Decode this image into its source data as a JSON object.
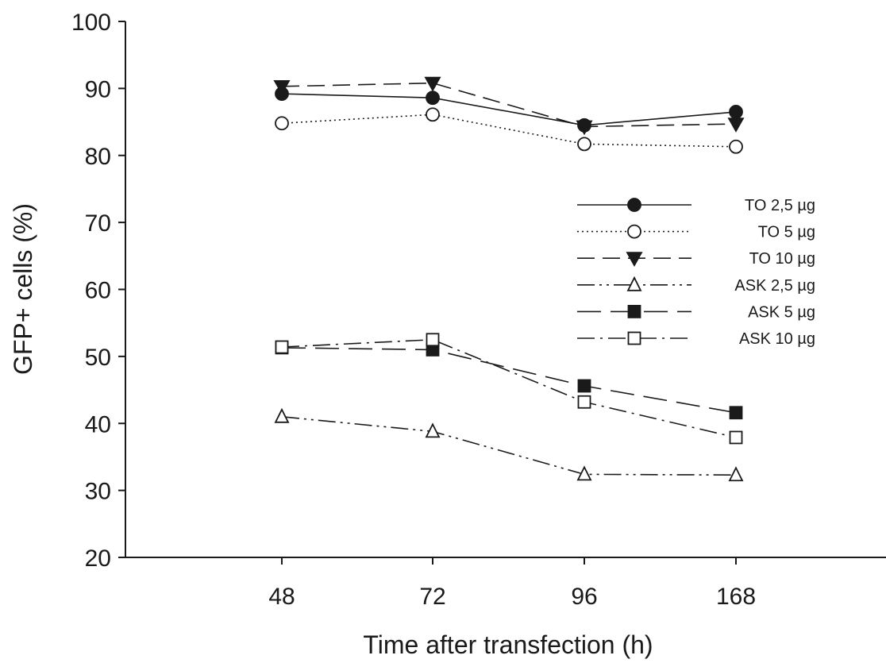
{
  "chart_data": {
    "type": "line",
    "title": "",
    "xlabel": "Time after transfection (h)",
    "ylabel": "GFP+ cells (%)",
    "categories": [
      "48",
      "72",
      "96",
      "168"
    ],
    "ylim": [
      20,
      100
    ],
    "yticks": [
      20,
      30,
      40,
      50,
      60,
      70,
      80,
      90,
      100
    ],
    "grid": false,
    "legend_position": "right",
    "series": [
      {
        "name": "TO 2,5 µg",
        "values": [
          89.2,
          88.6,
          84.5,
          86.5
        ],
        "marker": "filled-circle",
        "dash": "solid"
      },
      {
        "name": "TO 5 µg",
        "values": [
          84.8,
          86.1,
          81.7,
          81.3
        ],
        "marker": "open-circle",
        "dash": "dotted"
      },
      {
        "name": "TO 10 µg",
        "values": [
          90.3,
          90.8,
          84.3,
          84.7
        ],
        "marker": "filled-triangle-down",
        "dash": "dashed"
      },
      {
        "name": "ASK 2,5 µg",
        "values": [
          41.0,
          38.8,
          32.4,
          32.3
        ],
        "marker": "open-triangle-up",
        "dash": "dash-dot-dot"
      },
      {
        "name": "ASK 5 µg",
        "values": [
          51.3,
          51.0,
          45.6,
          41.6
        ],
        "marker": "filled-square",
        "dash": "long-dash"
      },
      {
        "name": "ASK 10 µg",
        "values": [
          51.4,
          52.5,
          43.2,
          37.9
        ],
        "marker": "open-square",
        "dash": "dash-dot"
      }
    ]
  }
}
